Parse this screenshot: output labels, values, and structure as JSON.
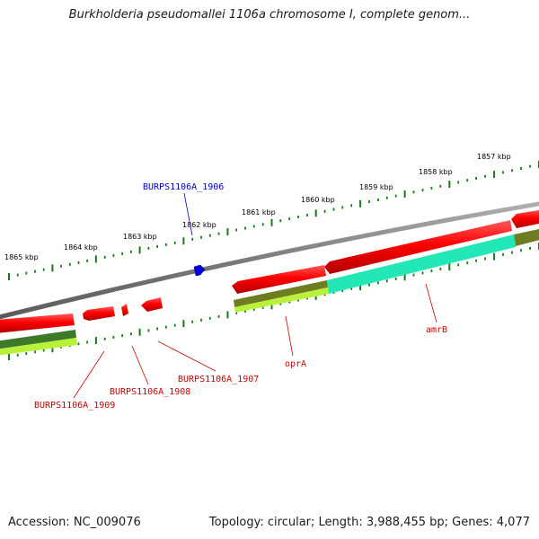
{
  "title": "Burkholderia pseudomallei 1106a chromosome I, complete genom...",
  "footer": {
    "accession": "Accession: NC_009076",
    "summary": "Topology: circular; Length: 3,988,455 bp; Genes: 4,077"
  },
  "colors": {
    "backbone": "#808080",
    "feature_red": "#ff0000",
    "feature_blue": "#0000dd",
    "feature_olive": "#6b8e23",
    "feature_lime": "#adff2f",
    "feature_aqua": "#00fa9a",
    "feature_darkgreen": "#2e8b57",
    "tick": "#006400",
    "label_red": "#cc0000",
    "label_blue": "#0000cc"
  },
  "scale_labels": [
    "1857 kbp",
    "1858 kbp",
    "1859 kbp",
    "1860 kbp",
    "1861 kbp",
    "1862 kbp",
    "1863 kbp",
    "1864 kbp",
    "1865 kbp"
  ],
  "gene_labels": [
    {
      "name": "BURPS1106A_1906",
      "color": "blue"
    },
    {
      "name": "BURPS1106A_1907",
      "color": "red"
    },
    {
      "name": "BURPS1106A_1908",
      "color": "red"
    },
    {
      "name": "BURPS1106A_1909",
      "color": "red"
    },
    {
      "name": "oprA",
      "color": "red"
    },
    {
      "name": "amrB",
      "color": "red"
    }
  ]
}
